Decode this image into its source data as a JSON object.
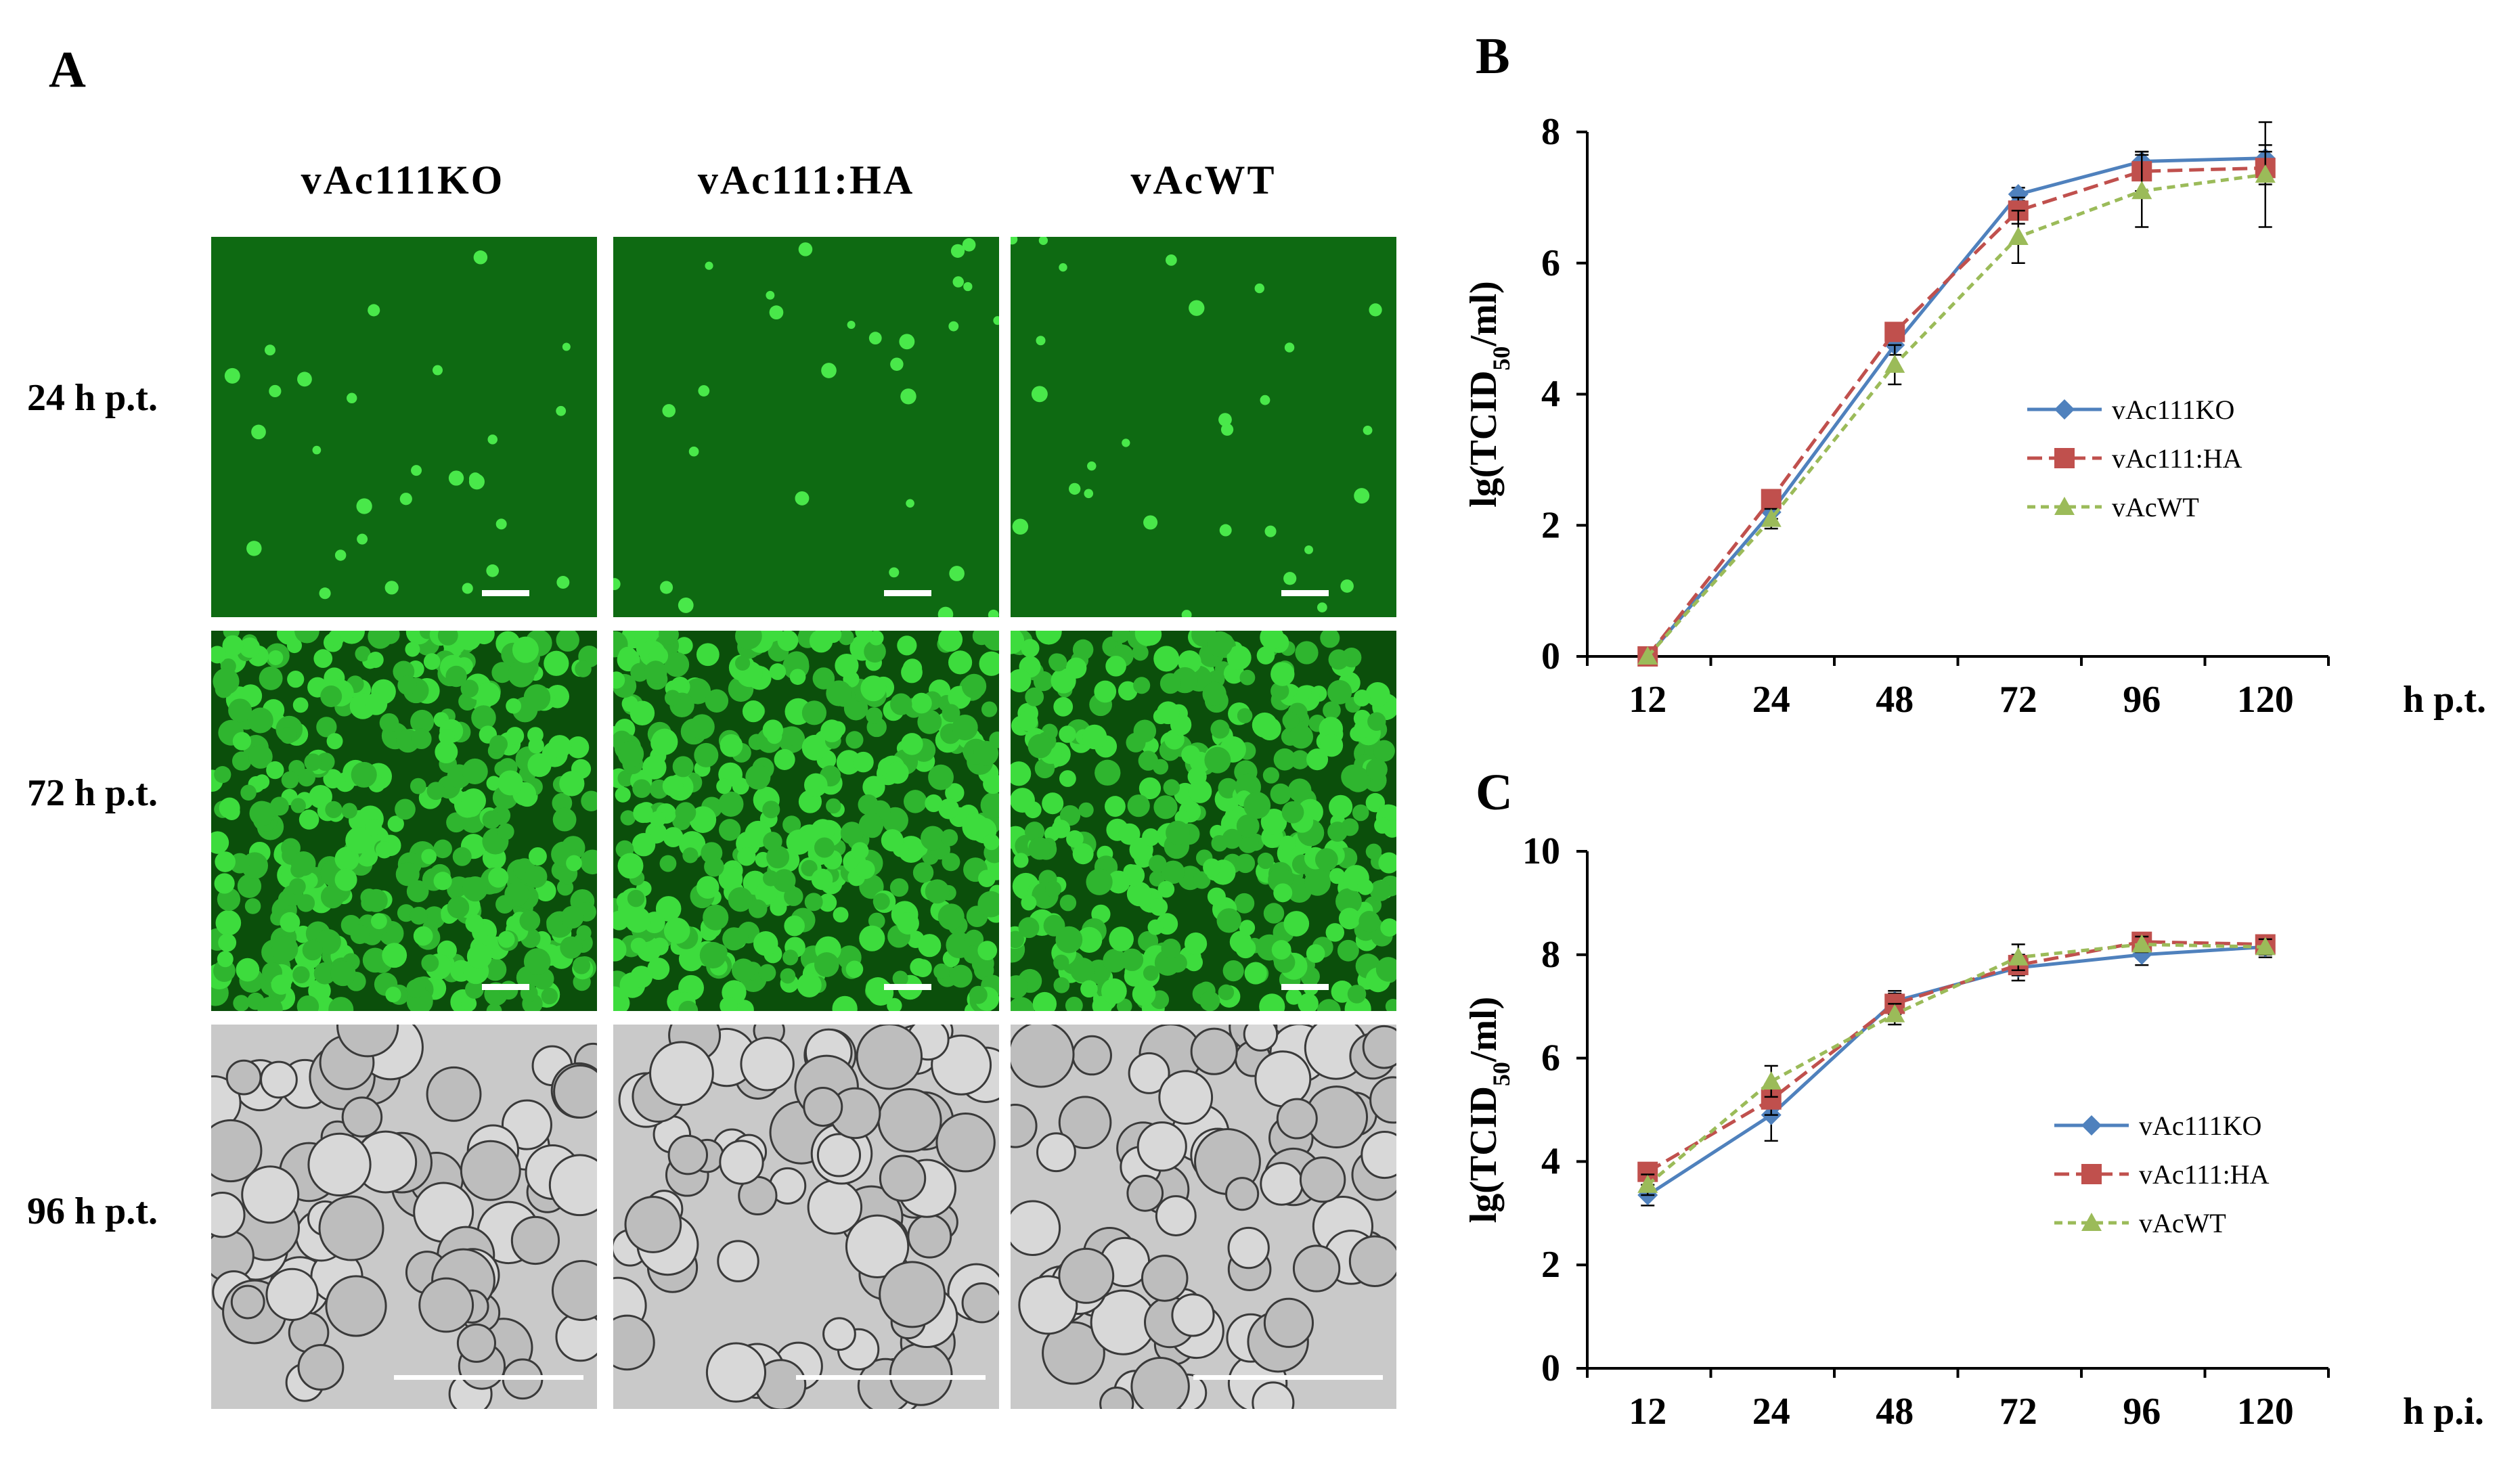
{
  "panels": {
    "a": {
      "letter": "A",
      "columns": [
        "vAc111KO",
        "vAc111:HA",
        "vAcWT"
      ],
      "rows": [
        "24 h p.t.",
        "72 h p.t.",
        "96 h p.t."
      ]
    },
    "b": {
      "letter": "B"
    },
    "c": {
      "letter": "C"
    }
  },
  "colors": {
    "vAc111KO": "#4f81bd",
    "vAc111:HA": "#c0504d",
    "vAcWT": "#9bbb59",
    "fluorescence_bg": "#0f5e0f",
    "fluorescence_cell": "#3ddc3d",
    "brightfield_bg": "#c9c9c9"
  },
  "chart_data": [
    {
      "id": "B",
      "type": "line",
      "categories": [
        "12",
        "24",
        "48",
        "72",
        "96",
        "120"
      ],
      "x_unit_label": "h p.t.",
      "ylabel": "lg(TCID50/ml)",
      "ylim": [
        0,
        8
      ],
      "yticks": [
        "0",
        "2",
        "4",
        "6",
        "8"
      ],
      "grid": false,
      "legend_position": "right",
      "series": [
        {
          "name": "vAc111KO",
          "marker": "diamond",
          "dash": "solid",
          "values": [
            0,
            2.2,
            4.75,
            7.05,
            7.55,
            7.6
          ],
          "errors": [
            0,
            0.1,
            0.15,
            0.1,
            0.15,
            0.2
          ]
        },
        {
          "name": "vAc111:HA",
          "marker": "square",
          "dash": "dashed",
          "values": [
            0,
            2.4,
            4.95,
            6.8,
            7.4,
            7.45
          ],
          "errors": [
            0,
            0.1,
            0.1,
            0.2,
            0.3,
            0.25
          ]
        },
        {
          "name": "vAcWT",
          "marker": "triangle",
          "dash": "dotted",
          "values": [
            0,
            2.1,
            4.45,
            6.4,
            7.1,
            7.35
          ],
          "errors": [
            0,
            0.15,
            0.3,
            0.4,
            0.55,
            0.8
          ]
        }
      ]
    },
    {
      "id": "C",
      "type": "line",
      "categories": [
        "12",
        "24",
        "48",
        "72",
        "96",
        "120"
      ],
      "x_unit_label": "h p.i.",
      "ylabel": "lg(TCID50/ml)",
      "ylim": [
        0,
        10
      ],
      "yticks": [
        "0",
        "2",
        "4",
        "6",
        "8",
        "10"
      ],
      "grid": false,
      "legend_position": "right",
      "series": [
        {
          "name": "vAc111KO",
          "marker": "diamond",
          "dash": "solid",
          "values": [
            3.35,
            4.9,
            7.1,
            7.75,
            8.0,
            8.15
          ],
          "errors": [
            0.2,
            0.5,
            0.2,
            0.25,
            0.2,
            0.2
          ]
        },
        {
          "name": "vAc111:HA",
          "marker": "square",
          "dash": "dashed",
          "values": [
            3.8,
            5.2,
            7.05,
            7.8,
            8.25,
            8.2
          ],
          "errors": [
            0.1,
            0.3,
            0.2,
            0.2,
            0.1,
            0.1
          ]
        },
        {
          "name": "vAcWT",
          "marker": "triangle",
          "dash": "dotted",
          "values": [
            3.55,
            5.55,
            6.85,
            7.95,
            8.2,
            8.15
          ],
          "errors": [
            0.2,
            0.3,
            0.2,
            0.25,
            0.15,
            0.15
          ]
        }
      ]
    }
  ]
}
